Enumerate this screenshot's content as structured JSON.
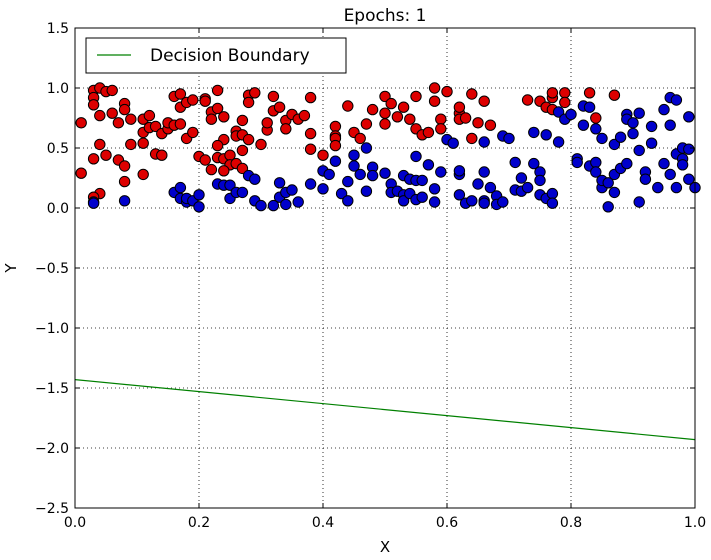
{
  "chart_data": {
    "type": "scatter",
    "title": "Epochs: 1",
    "xlabel": "X",
    "ylabel": "Y",
    "xlim": [
      0.0,
      1.0
    ],
    "ylim": [
      -2.5,
      1.5
    ],
    "xticks": [
      "0.0",
      "0.2",
      "0.4",
      "0.6",
      "0.8",
      "1.0"
    ],
    "yticks": [
      "1.5",
      "1.0",
      "0.5",
      "0.0",
      "−0.5",
      "−1.0",
      "−1.5",
      "−2.0",
      "−2.5"
    ],
    "grid": true,
    "legend": {
      "position": "top-left",
      "entries": [
        "Decision Boundary"
      ]
    },
    "colors": {
      "class_0": "#0000cc",
      "class_1": "#dd0000",
      "boundary": "#008000"
    },
    "series": [
      {
        "marker": "circle",
        "color": "#dd0000",
        "points": [
          [
            0.01,
            0.71
          ],
          [
            0.01,
            0.29
          ],
          [
            0.03,
            0.98
          ],
          [
            0.04,
            1.0
          ],
          [
            0.03,
            0.92
          ],
          [
            0.05,
            0.97
          ],
          [
            0.03,
            0.86
          ],
          [
            0.04,
            0.77
          ],
          [
            0.06,
            0.98
          ],
          [
            0.04,
            0.53
          ],
          [
            0.06,
            0.79
          ],
          [
            0.03,
            0.41
          ],
          [
            0.05,
            0.44
          ],
          [
            0.04,
            0.12
          ],
          [
            0.03,
            0.09
          ],
          [
            0.07,
            0.71
          ],
          [
            0.08,
            0.87
          ],
          [
            0.08,
            0.82
          ],
          [
            0.09,
            0.74
          ],
          [
            0.07,
            0.4
          ],
          [
            0.08,
            0.22
          ],
          [
            0.08,
            0.35
          ],
          [
            0.09,
            0.53
          ],
          [
            0.11,
            0.54
          ],
          [
            0.11,
            0.74
          ],
          [
            0.12,
            0.77
          ],
          [
            0.11,
            0.63
          ],
          [
            0.12,
            0.67
          ],
          [
            0.13,
            0.68
          ],
          [
            0.11,
            0.28
          ],
          [
            0.14,
            0.62
          ],
          [
            0.13,
            0.45
          ],
          [
            0.14,
            0.44
          ],
          [
            0.15,
            0.66
          ],
          [
            0.15,
            0.71
          ],
          [
            0.16,
            0.69
          ],
          [
            0.16,
            0.93
          ],
          [
            0.17,
            0.95
          ],
          [
            0.17,
            0.84
          ],
          [
            0.17,
            0.7
          ],
          [
            0.18,
            0.88
          ],
          [
            0.19,
            0.9
          ],
          [
            0.18,
            0.58
          ],
          [
            0.19,
            0.63
          ],
          [
            0.2,
            0.43
          ],
          [
            0.21,
            0.91
          ],
          [
            0.21,
            0.89
          ],
          [
            0.21,
            0.4
          ],
          [
            0.22,
            0.8
          ],
          [
            0.22,
            0.74
          ],
          [
            0.23,
            0.98
          ],
          [
            0.23,
            0.83
          ],
          [
            0.24,
            0.76
          ],
          [
            0.24,
            0.57
          ],
          [
            0.23,
            0.52
          ],
          [
            0.23,
            0.42
          ],
          [
            0.24,
            0.41
          ],
          [
            0.25,
            0.44
          ],
          [
            0.25,
            0.36
          ],
          [
            0.22,
            0.32
          ],
          [
            0.24,
            0.31
          ],
          [
            0.26,
            0.64
          ],
          [
            0.26,
            0.6
          ],
          [
            0.27,
            0.73
          ],
          [
            0.27,
            0.61
          ],
          [
            0.27,
            0.48
          ],
          [
            0.26,
            0.37
          ],
          [
            0.27,
            0.33
          ],
          [
            0.28,
            0.94
          ],
          [
            0.28,
            0.88
          ],
          [
            0.29,
            0.96
          ],
          [
            0.28,
            0.57
          ],
          [
            0.3,
            0.53
          ],
          [
            0.31,
            0.65
          ],
          [
            0.31,
            0.71
          ],
          [
            0.32,
            0.93
          ],
          [
            0.32,
            0.81
          ],
          [
            0.33,
            0.84
          ],
          [
            0.34,
            0.73
          ],
          [
            0.34,
            0.66
          ],
          [
            0.35,
            0.78
          ],
          [
            0.36,
            0.74
          ],
          [
            0.37,
            0.77
          ],
          [
            0.38,
            0.92
          ],
          [
            0.38,
            0.62
          ],
          [
            0.38,
            0.49
          ],
          [
            0.4,
            0.44
          ],
          [
            0.42,
            0.68
          ],
          [
            0.42,
            0.6
          ],
          [
            0.42,
            0.58
          ],
          [
            0.42,
            0.52
          ],
          [
            0.44,
            0.85
          ],
          [
            0.45,
            0.63
          ],
          [
            0.46,
            0.58
          ],
          [
            0.47,
            0.7
          ],
          [
            0.48,
            0.82
          ],
          [
            0.5,
            0.93
          ],
          [
            0.5,
            0.79
          ],
          [
            0.5,
            0.7
          ],
          [
            0.51,
            0.87
          ],
          [
            0.52,
            0.76
          ],
          [
            0.53,
            0.84
          ],
          [
            0.54,
            0.74
          ],
          [
            0.55,
            0.66
          ],
          [
            0.55,
            0.93
          ],
          [
            0.56,
            0.61
          ],
          [
            0.57,
            0.63
          ],
          [
            0.58,
            1.0
          ],
          [
            0.58,
            0.89
          ],
          [
            0.59,
            0.74
          ],
          [
            0.59,
            0.66
          ],
          [
            0.6,
            0.97
          ],
          [
            0.62,
            0.79
          ],
          [
            0.62,
            0.84
          ],
          [
            0.62,
            0.74
          ],
          [
            0.63,
            0.75
          ],
          [
            0.64,
            0.58
          ],
          [
            0.64,
            0.95
          ],
          [
            0.65,
            0.71
          ],
          [
            0.66,
            0.89
          ],
          [
            0.67,
            0.69
          ],
          [
            0.73,
            0.9
          ],
          [
            0.75,
            0.89
          ],
          [
            0.76,
            0.84
          ],
          [
            0.77,
            0.92
          ],
          [
            0.77,
            0.96
          ],
          [
            0.77,
            0.82
          ],
          [
            0.79,
            0.96
          ],
          [
            0.79,
            0.88
          ],
          [
            0.83,
            0.96
          ],
          [
            0.84,
            0.75
          ],
          [
            0.87,
            0.94
          ]
        ]
      },
      {
        "marker": "circle",
        "color": "#0000cc",
        "points": [
          [
            0.03,
            0.05
          ],
          [
            0.03,
            0.04
          ],
          [
            0.08,
            0.06
          ],
          [
            0.16,
            0.13
          ],
          [
            0.17,
            0.08
          ],
          [
            0.17,
            0.17
          ],
          [
            0.18,
            0.05
          ],
          [
            0.18,
            0.08
          ],
          [
            0.19,
            0.06
          ],
          [
            0.2,
            0.11
          ],
          [
            0.2,
            0.01
          ],
          [
            0.23,
            0.2
          ],
          [
            0.24,
            0.19
          ],
          [
            0.25,
            0.08
          ],
          [
            0.25,
            0.19
          ],
          [
            0.26,
            0.13
          ],
          [
            0.27,
            0.13
          ],
          [
            0.28,
            0.27
          ],
          [
            0.29,
            0.24
          ],
          [
            0.29,
            0.06
          ],
          [
            0.3,
            0.02
          ],
          [
            0.32,
            0.02
          ],
          [
            0.33,
            0.21
          ],
          [
            0.33,
            0.09
          ],
          [
            0.34,
            0.13
          ],
          [
            0.34,
            0.03
          ],
          [
            0.35,
            0.15
          ],
          [
            0.36,
            0.05
          ],
          [
            0.38,
            0.2
          ],
          [
            0.4,
            0.16
          ],
          [
            0.4,
            0.31
          ],
          [
            0.41,
            0.28
          ],
          [
            0.42,
            0.39
          ],
          [
            0.43,
            0.12
          ],
          [
            0.44,
            0.22
          ],
          [
            0.44,
            0.06
          ],
          [
            0.45,
            0.44
          ],
          [
            0.45,
            0.35
          ],
          [
            0.46,
            0.28
          ],
          [
            0.47,
            0.14
          ],
          [
            0.47,
            0.5
          ],
          [
            0.48,
            0.34
          ],
          [
            0.48,
            0.27
          ],
          [
            0.5,
            0.29
          ],
          [
            0.51,
            0.2
          ],
          [
            0.51,
            0.13
          ],
          [
            0.52,
            0.14
          ],
          [
            0.53,
            0.27
          ],
          [
            0.53,
            0.11
          ],
          [
            0.53,
            0.06
          ],
          [
            0.54,
            0.24
          ],
          [
            0.54,
            0.12
          ],
          [
            0.55,
            0.07
          ],
          [
            0.55,
            0.43
          ],
          [
            0.55,
            0.23
          ],
          [
            0.56,
            0.23
          ],
          [
            0.56,
            0.09
          ],
          [
            0.57,
            0.36
          ],
          [
            0.58,
            0.05
          ],
          [
            0.58,
            0.16
          ],
          [
            0.59,
            0.3
          ],
          [
            0.6,
            0.57
          ],
          [
            0.61,
            0.54
          ],
          [
            0.62,
            0.28
          ],
          [
            0.62,
            0.31
          ],
          [
            0.62,
            0.11
          ],
          [
            0.63,
            0.04
          ],
          [
            0.64,
            0.06
          ],
          [
            0.65,
            0.2
          ],
          [
            0.66,
            0.06
          ],
          [
            0.66,
            0.04
          ],
          [
            0.66,
            0.55
          ],
          [
            0.66,
            0.3
          ],
          [
            0.67,
            0.17
          ],
          [
            0.68,
            0.1
          ],
          [
            0.68,
            0.03
          ],
          [
            0.69,
            0.05
          ],
          [
            0.69,
            0.6
          ],
          [
            0.7,
            0.58
          ],
          [
            0.71,
            0.38
          ],
          [
            0.71,
            0.15
          ],
          [
            0.72,
            0.25
          ],
          [
            0.72,
            0.14
          ],
          [
            0.73,
            0.17
          ],
          [
            0.74,
            0.63
          ],
          [
            0.74,
            0.37
          ],
          [
            0.75,
            0.3
          ],
          [
            0.75,
            0.23
          ],
          [
            0.75,
            0.11
          ],
          [
            0.76,
            0.61
          ],
          [
            0.76,
            0.08
          ],
          [
            0.77,
            0.12
          ],
          [
            0.77,
            0.04
          ],
          [
            0.78,
            0.55
          ],
          [
            0.78,
            0.8
          ],
          [
            0.79,
            0.74
          ],
          [
            0.8,
            0.78
          ],
          [
            0.81,
            0.41
          ],
          [
            0.81,
            0.38
          ],
          [
            0.82,
            0.85
          ],
          [
            0.82,
            0.69
          ],
          [
            0.83,
            0.84
          ],
          [
            0.83,
            0.35
          ],
          [
            0.84,
            0.38
          ],
          [
            0.84,
            0.3
          ],
          [
            0.84,
            0.66
          ],
          [
            0.85,
            0.58
          ],
          [
            0.85,
            0.17
          ],
          [
            0.85,
            0.23
          ],
          [
            0.86,
            0.21
          ],
          [
            0.86,
            0.01
          ],
          [
            0.87,
            0.28
          ],
          [
            0.87,
            0.13
          ],
          [
            0.87,
            0.53
          ],
          [
            0.88,
            0.59
          ],
          [
            0.88,
            0.33
          ],
          [
            0.89,
            0.78
          ],
          [
            0.89,
            0.74
          ],
          [
            0.89,
            0.37
          ],
          [
            0.9,
            0.71
          ],
          [
            0.9,
            0.62
          ],
          [
            0.91,
            0.79
          ],
          [
            0.91,
            0.48
          ],
          [
            0.91,
            0.05
          ],
          [
            0.92,
            0.3
          ],
          [
            0.92,
            0.24
          ],
          [
            0.93,
            0.68
          ],
          [
            0.93,
            0.54
          ],
          [
            0.94,
            0.17
          ],
          [
            0.95,
            0.37
          ],
          [
            0.95,
            0.82
          ],
          [
            0.96,
            0.69
          ],
          [
            0.96,
            0.92
          ],
          [
            0.96,
            0.28
          ],
          [
            0.97,
            0.9
          ],
          [
            0.97,
            0.45
          ],
          [
            0.98,
            0.5
          ],
          [
            0.98,
            0.41
          ],
          [
            0.99,
            0.49
          ],
          [
            0.99,
            0.24
          ],
          [
            1.0,
            0.17
          ],
          [
            0.99,
            0.76
          ],
          [
            0.98,
            0.36
          ],
          [
            0.97,
            0.17
          ]
        ]
      },
      {
        "name": "Decision Boundary",
        "marker": "line",
        "color": "#008000",
        "x": [
          0.0,
          1.0
        ],
        "y": [
          -1.43,
          -1.93
        ]
      }
    ]
  }
}
